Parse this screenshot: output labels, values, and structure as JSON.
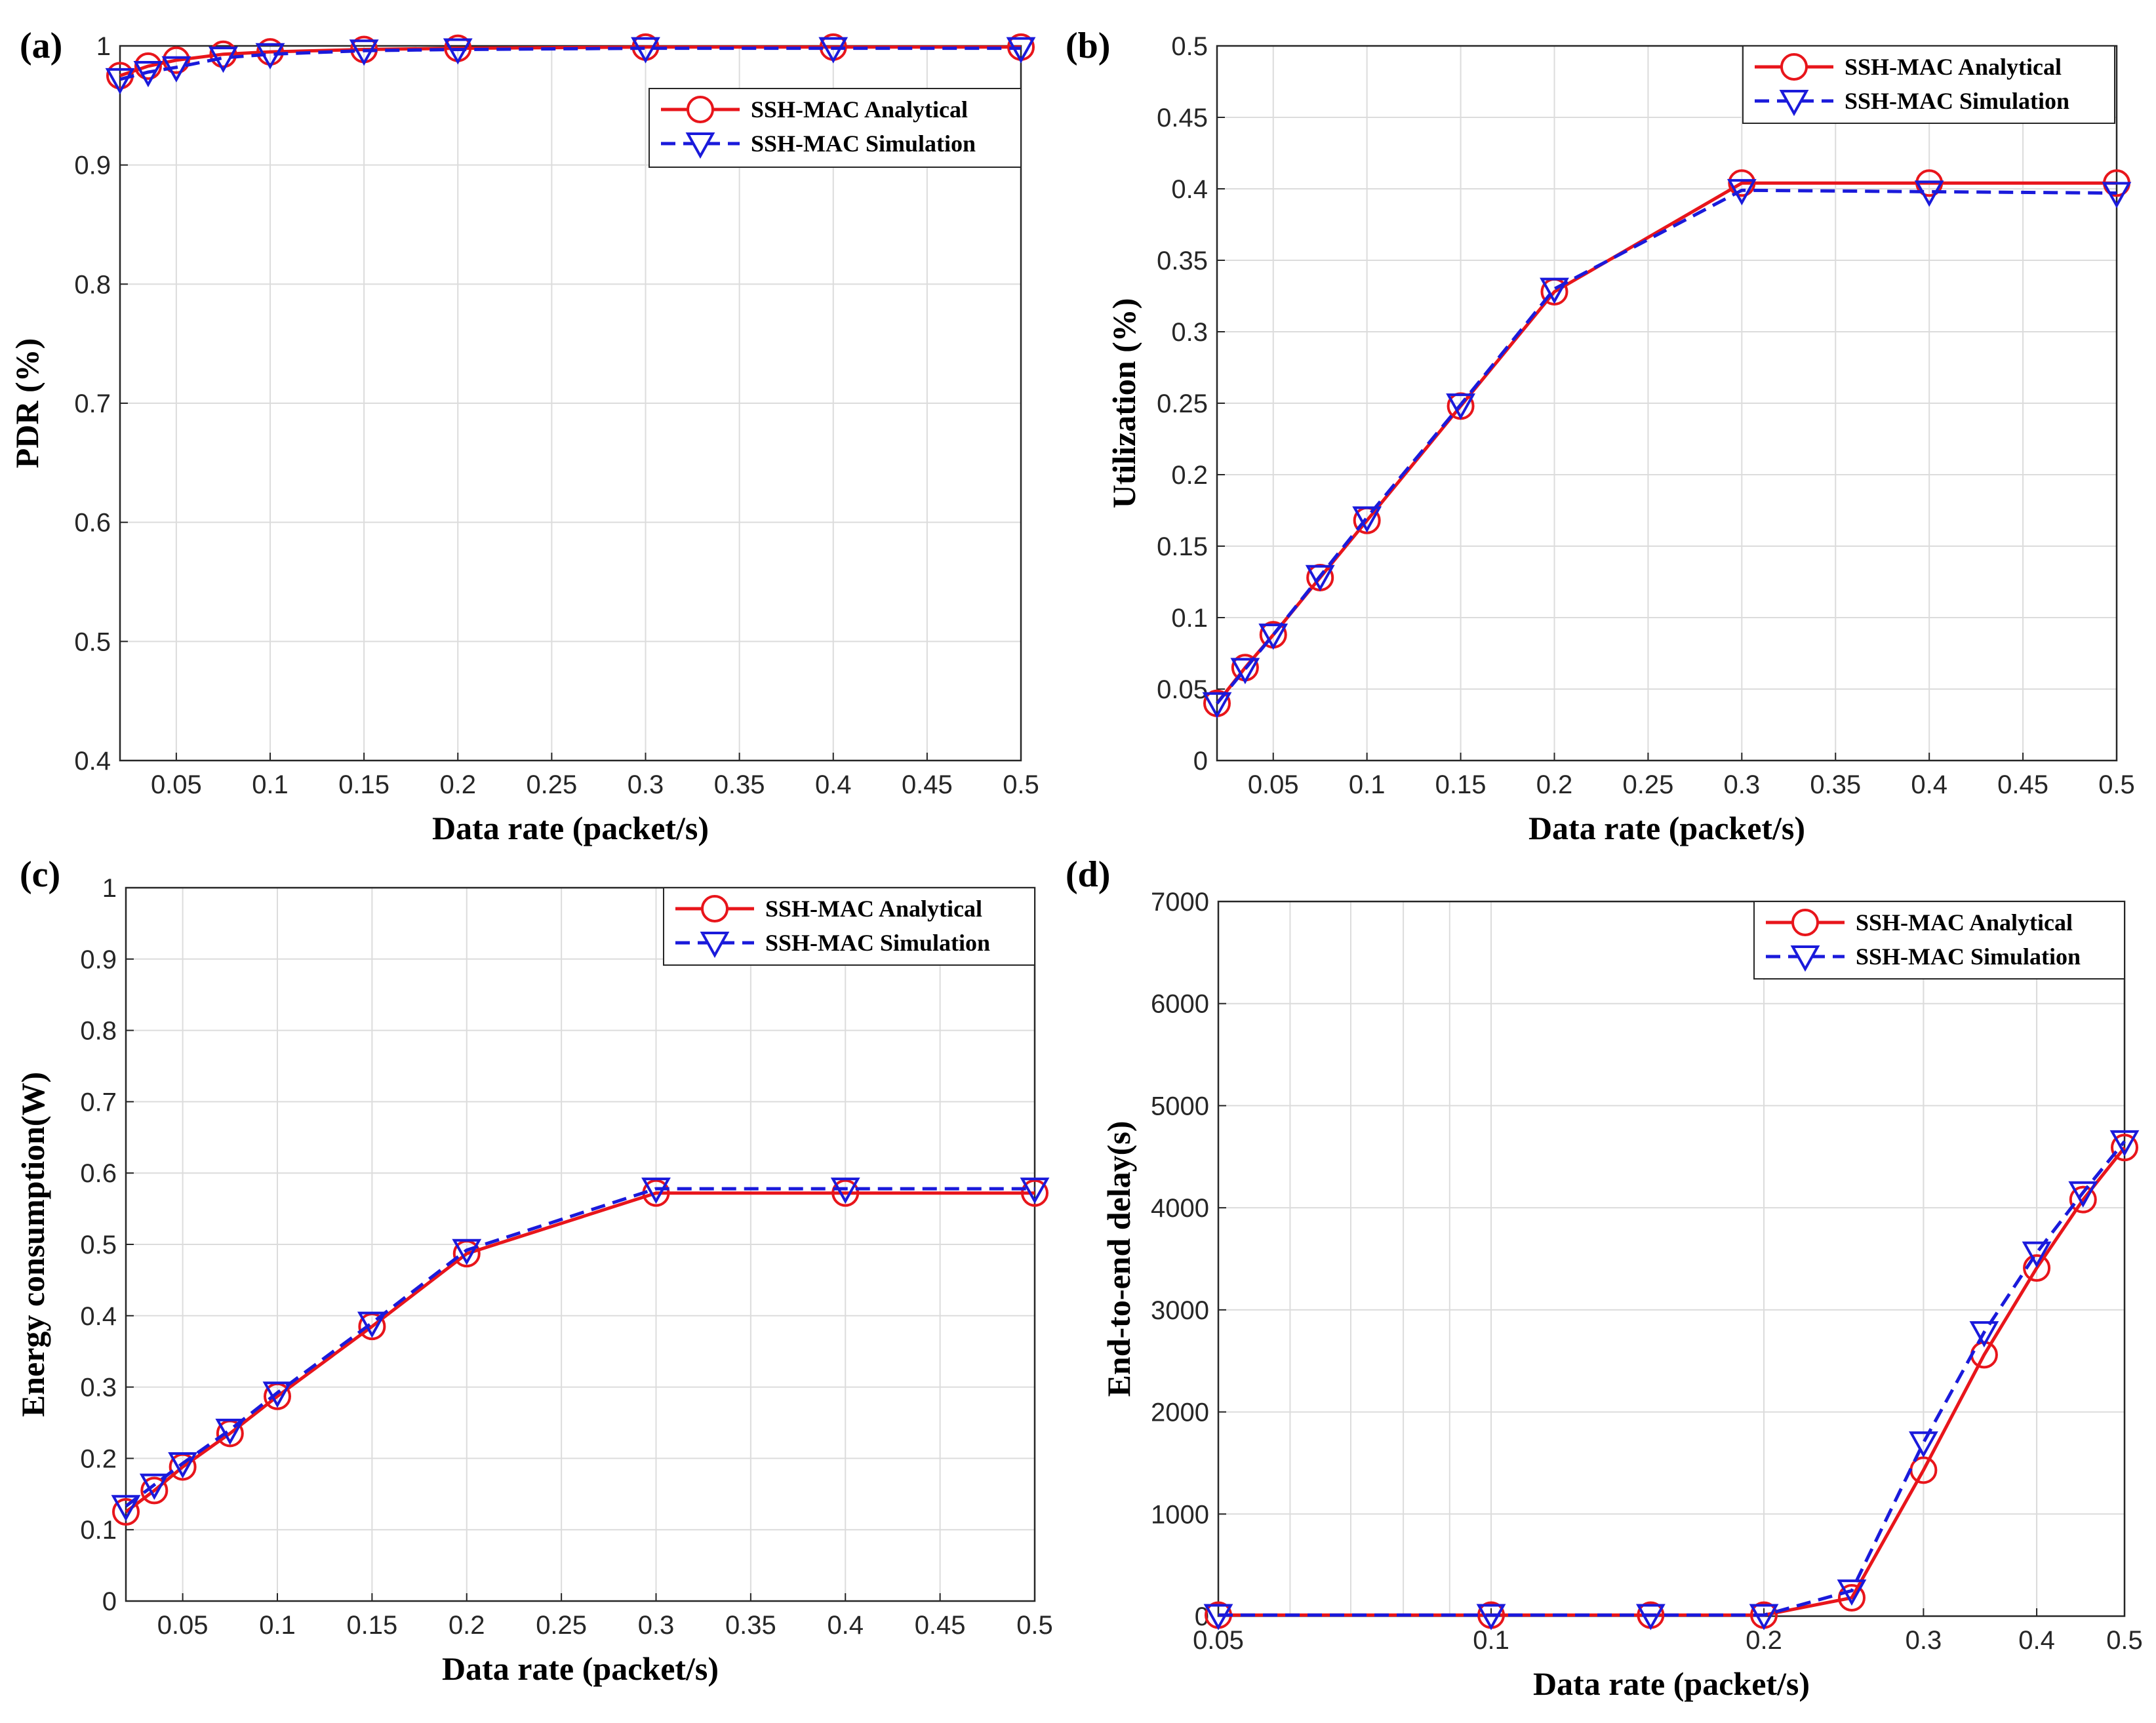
{
  "chart_data": [
    {
      "panel": "(a)",
      "type": "line",
      "xlabel": "Data rate (packet/s)",
      "ylabel": "PDR (%)",
      "xlim": [
        0.02,
        0.5
      ],
      "ylim": [
        0.4,
        1
      ],
      "x_scale": "linear",
      "x_ticks": [
        0.05,
        0.1,
        0.15,
        0.2,
        0.25,
        0.3,
        0.35,
        0.4,
        0.45,
        0.5
      ],
      "x_tick_labels": [
        "0.05",
        "0.1",
        "0.15",
        "0.2",
        "0.25",
        "0.3",
        "0.35",
        "0.4",
        "0.45",
        "0.5"
      ],
      "y_ticks": [
        0.4,
        0.5,
        0.6,
        0.7,
        0.8,
        0.9,
        1
      ],
      "y_tick_labels": [
        "0.4",
        "0.5",
        "0.6",
        "0.7",
        "0.8",
        "0.9",
        "1"
      ],
      "legend": "top-right",
      "grid": true,
      "series": [
        {
          "name": "SSH-MAC Analytical",
          "color": "#e8151b",
          "marker": "circle",
          "line": "solid",
          "x": [
            0.02,
            0.035,
            0.05,
            0.075,
            0.1,
            0.15,
            0.2,
            0.3,
            0.4,
            0.5
          ],
          "values": [
            0.975,
            0.983,
            0.988,
            0.993,
            0.995,
            0.997,
            0.998,
            0.999,
            0.999,
            0.999
          ]
        },
        {
          "name": "SSH-MAC Simulation",
          "color": "#1a1adb",
          "marker": "triangle-down",
          "line": "dashed",
          "x": [
            0.02,
            0.035,
            0.05,
            0.075,
            0.1,
            0.15,
            0.2,
            0.3,
            0.4,
            0.5
          ],
          "values": [
            0.972,
            0.978,
            0.982,
            0.99,
            0.993,
            0.996,
            0.997,
            0.998,
            0.998,
            0.998
          ]
        }
      ]
    },
    {
      "panel": "(b)",
      "type": "line",
      "xlabel": "Data rate (packet/s)",
      "ylabel": "Utilization (%)",
      "xlim": [
        0.02,
        0.5
      ],
      "ylim": [
        0,
        0.5
      ],
      "x_scale": "linear",
      "x_ticks": [
        0.05,
        0.1,
        0.15,
        0.2,
        0.25,
        0.3,
        0.35,
        0.4,
        0.45,
        0.5
      ],
      "x_tick_labels": [
        "0.05",
        "0.1",
        "0.15",
        "0.2",
        "0.25",
        "0.3",
        "0.35",
        "0.4",
        "0.45",
        "0.5"
      ],
      "y_ticks": [
        0,
        0.05,
        0.1,
        0.15,
        0.2,
        0.25,
        0.3,
        0.35,
        0.4,
        0.45,
        0.5
      ],
      "y_tick_labels": [
        "0",
        "0.05",
        "0.1",
        "0.15",
        "0.2",
        "0.25",
        "0.3",
        "0.35",
        "0.4",
        "0.45",
        "0.5"
      ],
      "legend": "top-right",
      "grid": true,
      "series": [
        {
          "name": "SSH-MAC Analytical",
          "color": "#e8151b",
          "marker": "circle",
          "line": "solid",
          "x": [
            0.02,
            0.035,
            0.05,
            0.075,
            0.1,
            0.15,
            0.2,
            0.3,
            0.4,
            0.5
          ],
          "values": [
            0.04,
            0.065,
            0.088,
            0.128,
            0.168,
            0.248,
            0.328,
            0.404,
            0.404,
            0.404
          ]
        },
        {
          "name": "SSH-MAC Simulation",
          "color": "#1a1adb",
          "marker": "triangle-down",
          "line": "dashed",
          "x": [
            0.02,
            0.035,
            0.05,
            0.075,
            0.1,
            0.15,
            0.2,
            0.3,
            0.4,
            0.5
          ],
          "values": [
            0.04,
            0.064,
            0.088,
            0.129,
            0.17,
            0.249,
            0.33,
            0.399,
            0.398,
            0.397
          ]
        }
      ]
    },
    {
      "panel": "(c)",
      "type": "line",
      "xlabel": "Data rate (packet/s)",
      "ylabel": "Energy consumption(W)",
      "xlim": [
        0.02,
        0.5
      ],
      "ylim": [
        0,
        1
      ],
      "x_scale": "linear",
      "x_ticks": [
        0.05,
        0.1,
        0.15,
        0.2,
        0.25,
        0.3,
        0.35,
        0.4,
        0.45,
        0.5
      ],
      "x_tick_labels": [
        "0.05",
        "0.1",
        "0.15",
        "0.2",
        "0.25",
        "0.3",
        "0.35",
        "0.4",
        "0.45",
        "0.5"
      ],
      "y_ticks": [
        0,
        0.1,
        0.2,
        0.3,
        0.4,
        0.5,
        0.6,
        0.7,
        0.8,
        0.9,
        1
      ],
      "y_tick_labels": [
        "0",
        "0.1",
        "0.2",
        "0.3",
        "0.4",
        "0.5",
        "0.6",
        "0.7",
        "0.8",
        "0.9",
        "1"
      ],
      "legend": "top-right",
      "grid": true,
      "series": [
        {
          "name": "SSH-MAC Analytical",
          "color": "#e8151b",
          "marker": "circle",
          "line": "solid",
          "x": [
            0.02,
            0.035,
            0.05,
            0.075,
            0.1,
            0.15,
            0.2,
            0.3,
            0.4,
            0.5
          ],
          "values": [
            0.125,
            0.155,
            0.188,
            0.235,
            0.287,
            0.385,
            0.487,
            0.572,
            0.572,
            0.572
          ]
        },
        {
          "name": "SSH-MAC Simulation",
          "color": "#1a1adb",
          "marker": "triangle-down",
          "line": "dashed",
          "x": [
            0.02,
            0.035,
            0.05,
            0.075,
            0.1,
            0.15,
            0.2,
            0.3,
            0.4,
            0.5
          ],
          "values": [
            0.133,
            0.163,
            0.193,
            0.24,
            0.292,
            0.39,
            0.492,
            0.578,
            0.578,
            0.578
          ]
        }
      ]
    },
    {
      "panel": "(d)",
      "type": "line",
      "xlabel": "Data rate (packet/s)",
      "ylabel": "End-to-end delay(s)",
      "xlim": [
        0.05,
        0.5
      ],
      "ylim": [
        0,
        7000
      ],
      "x_scale": "log",
      "x_ticks": [
        0.05,
        0.1,
        0.2,
        0.3,
        0.4,
        0.5
      ],
      "x_tick_labels": [
        "0.05",
        "0.1",
        "0.2",
        "0.3",
        "0.4",
        "0.5"
      ],
      "x_minor_grid": [
        0.06,
        0.07,
        0.08,
        0.09,
        0.2,
        0.3,
        0.4
      ],
      "y_ticks": [
        0,
        1000,
        2000,
        3000,
        4000,
        5000,
        6000,
        7000
      ],
      "y_tick_labels": [
        "0",
        "1000",
        "2000",
        "3000",
        "4000",
        "5000",
        "6000",
        "7000"
      ],
      "legend": "top-right",
      "grid": true,
      "series": [
        {
          "name": "SSH-MAC Analytical",
          "color": "#e8151b",
          "marker": "circle",
          "line": "solid",
          "x": [
            0.05,
            0.1,
            0.15,
            0.2,
            0.25,
            0.3,
            0.35,
            0.4,
            0.45,
            0.5
          ],
          "values": [
            10,
            10,
            10,
            10,
            180,
            1430,
            2560,
            3410,
            4080,
            4590
          ]
        },
        {
          "name": "SSH-MAC Simulation",
          "color": "#1a1adb",
          "marker": "triangle-down",
          "line": "dashed",
          "x": [
            0.05,
            0.1,
            0.15,
            0.2,
            0.25,
            0.3,
            0.35,
            0.4,
            0.45,
            0.5
          ],
          "values": [
            10,
            10,
            10,
            10,
            250,
            1700,
            2780,
            3560,
            4150,
            4650
          ]
        }
      ]
    }
  ]
}
